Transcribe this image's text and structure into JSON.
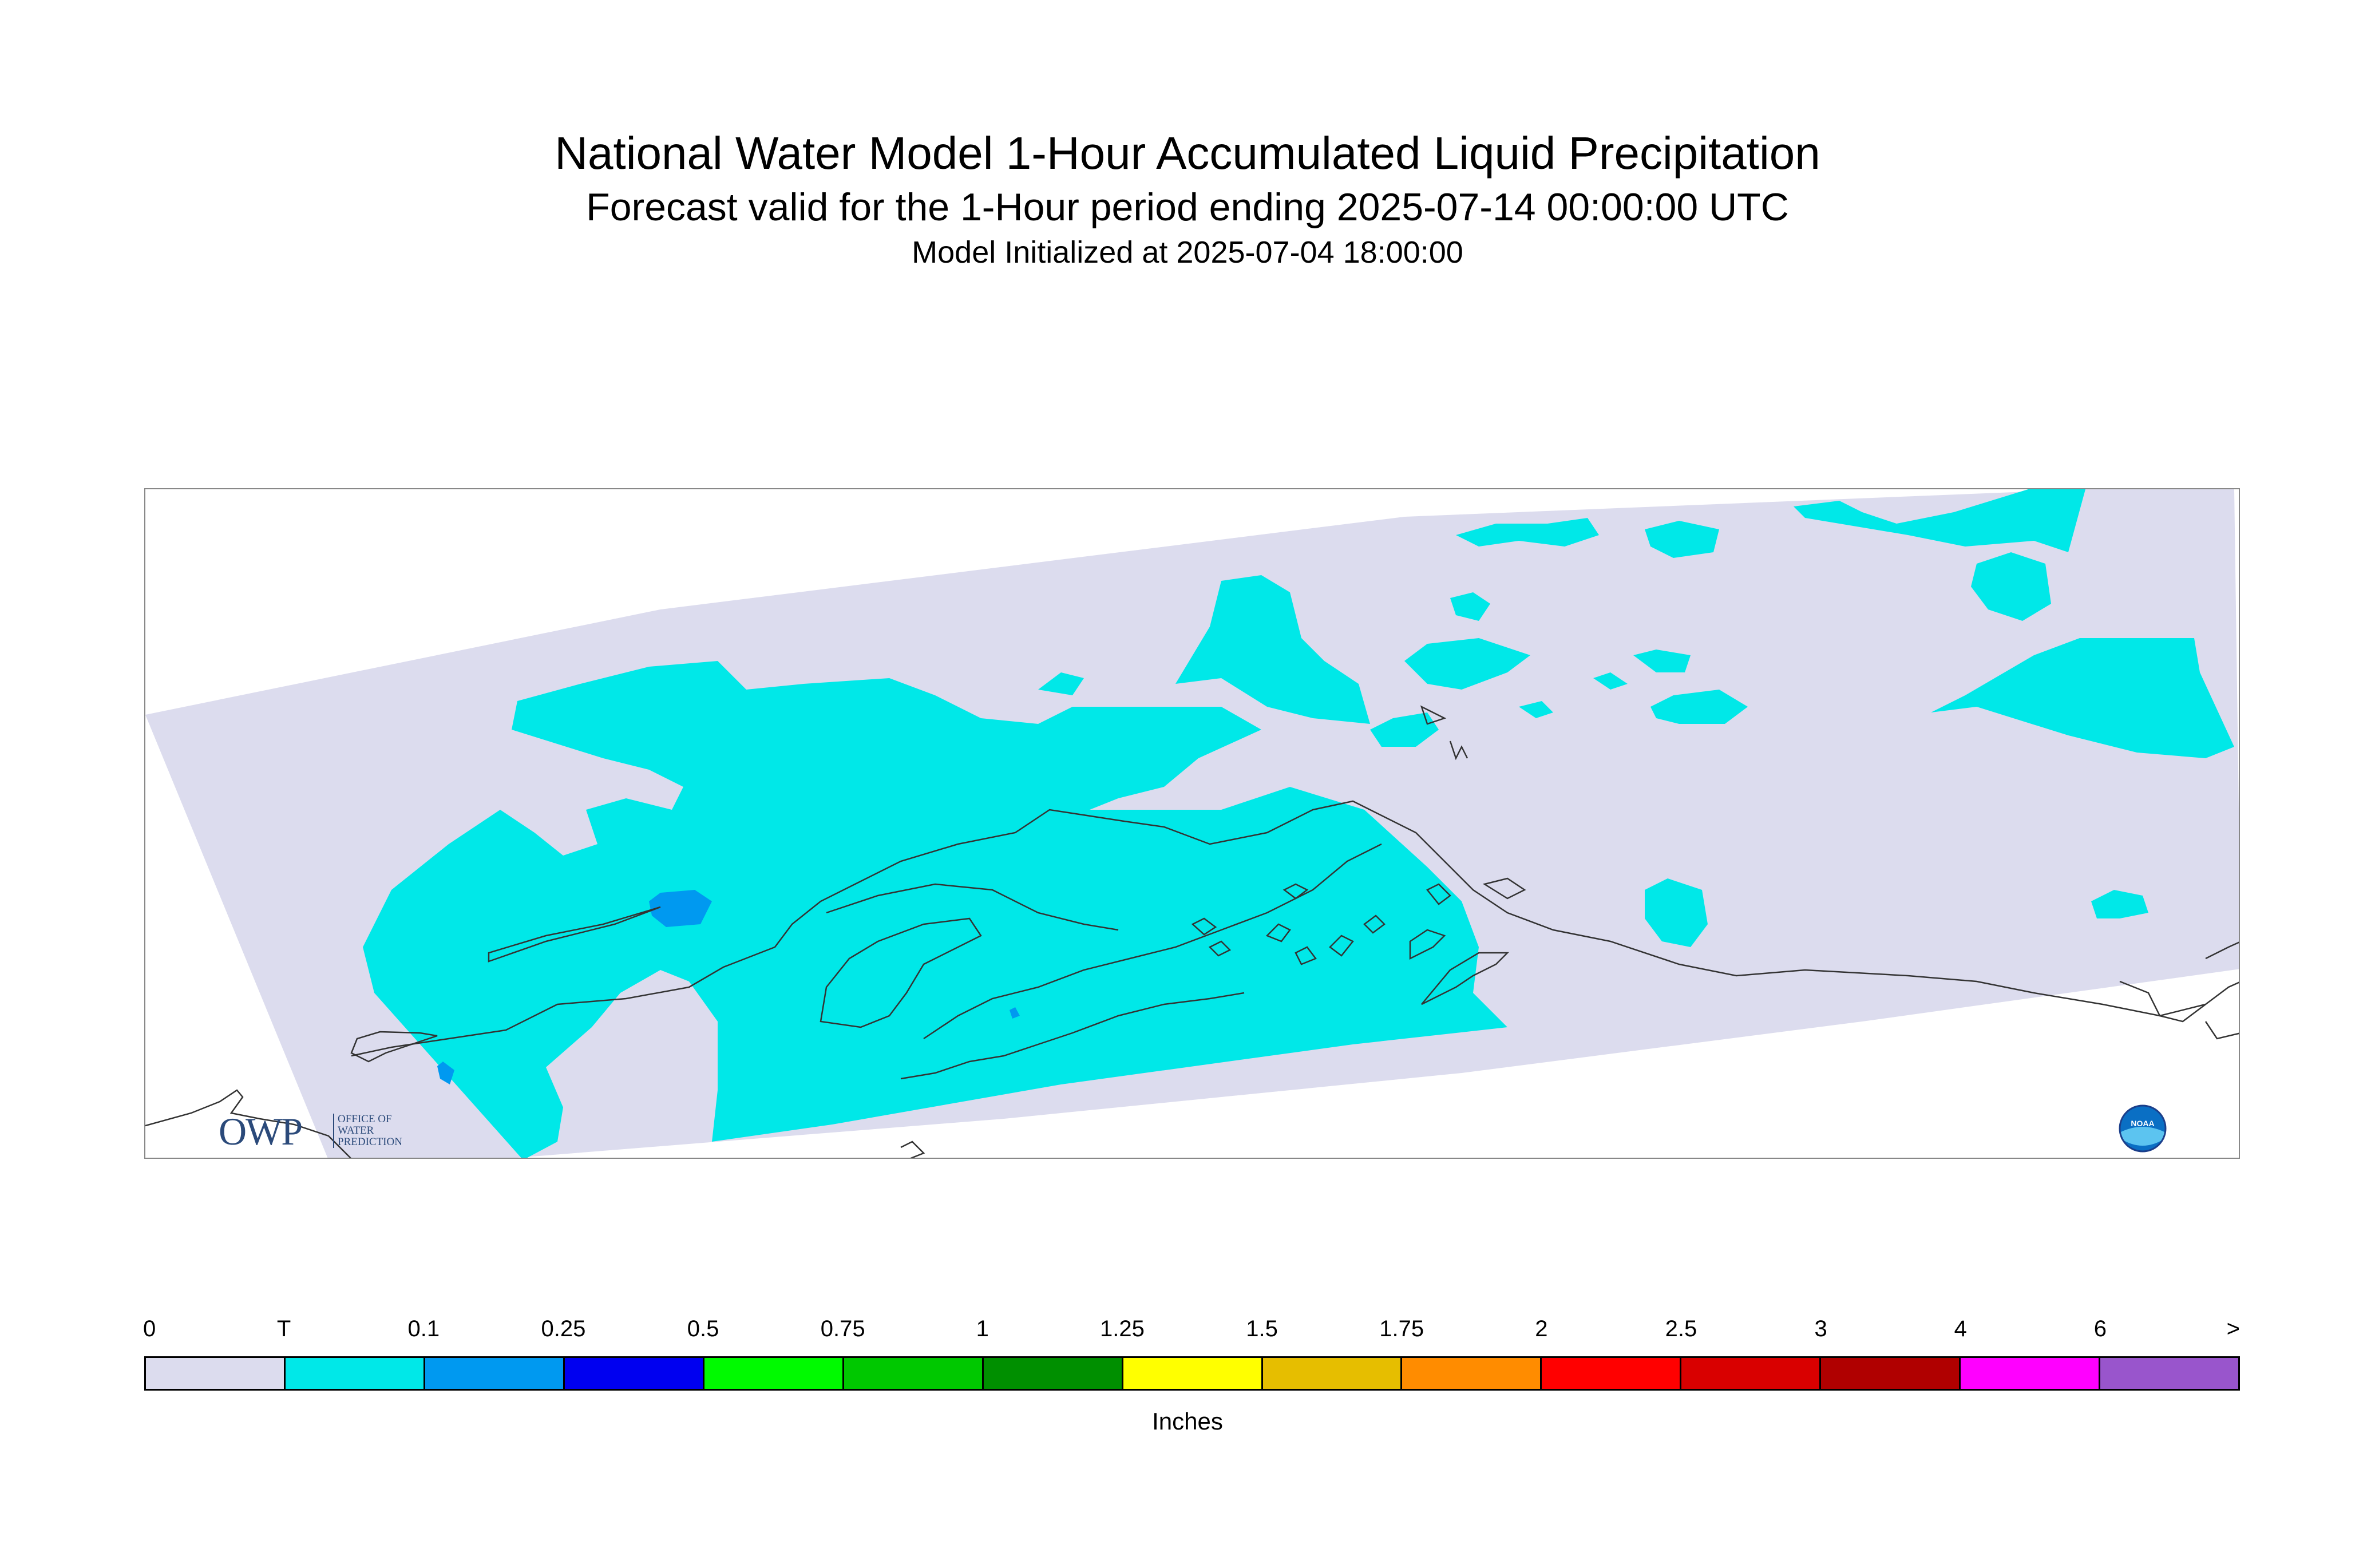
{
  "header": {
    "title": "National Water Model 1-Hour Accumulated Liquid Precipitation",
    "subtitle": "Forecast valid for the 1-Hour period ending 2025-07-14 00:00:00 UTC",
    "init_line": "Model Initialized at 2025-07-04 18:00:00"
  },
  "legend": {
    "tick_labels": [
      "0",
      "T",
      "0.1",
      "0.25",
      "0.5",
      "0.75",
      "1",
      "1.25",
      "1.5",
      "1.75",
      "2",
      "2.5",
      "3",
      "4",
      "6",
      ">"
    ],
    "colors": [
      "#dcdcee",
      "#00e8e8",
      "#0099f0",
      "#0000f0",
      "#00fa00",
      "#00c800",
      "#008f00",
      "#ffff00",
      "#e6be00",
      "#ff8c00",
      "#ff0000",
      "#d90000",
      "#b00000",
      "#ff00ff",
      "#9955cc"
    ],
    "units_label": "Inches"
  },
  "logos": {
    "owp_text": "OWP",
    "owp_subtext": [
      "OFFICE OF",
      "WATER",
      "PREDICTION"
    ],
    "noaa_text": "NOAA"
  },
  "map": {
    "domain_fill": "#dcdcee",
    "trace_fill": "#00e8e8",
    "light_fill": "#0099f0",
    "coastline": "#333333"
  }
}
